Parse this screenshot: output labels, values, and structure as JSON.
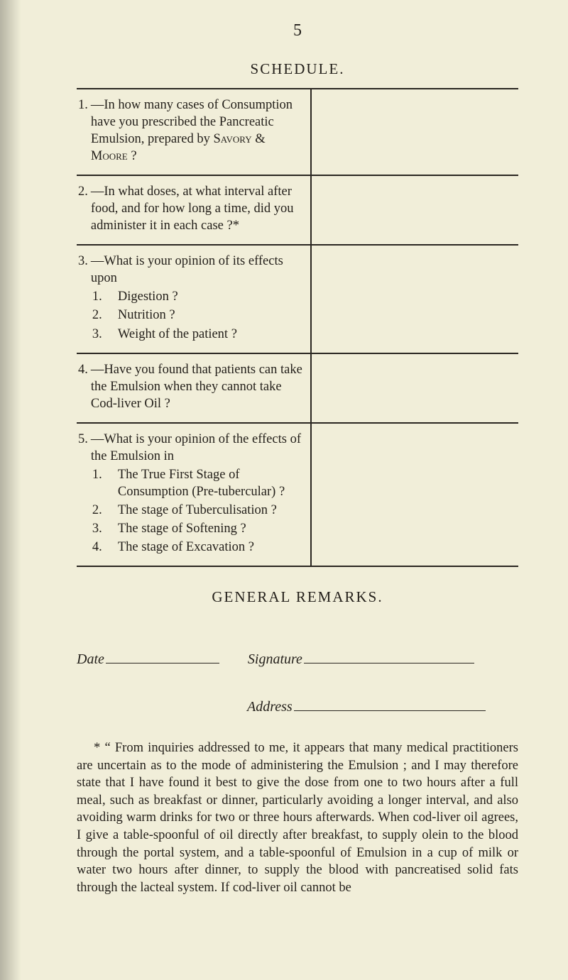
{
  "pageNumber": "5",
  "scheduleTitle": "SCHEDULE.",
  "questions": {
    "q1": {
      "num": "1.",
      "lead": "—In how many cases of Consump­tion have you prescribed the Pancreatic Emulsion, pre­pared by ",
      "smallcaps": "Savory & Moore",
      "tail": " ?"
    },
    "q2": {
      "num": "2.",
      "text": "—In what doses, at what interval after food, and for how long a time, did you administer it in each case ?*"
    },
    "q3": {
      "num": "3.",
      "text": "—What is your opinion of its effects upon",
      "items": [
        {
          "n": "1.",
          "t": "Digestion ?"
        },
        {
          "n": "2.",
          "t": "Nutrition ?"
        },
        {
          "n": "3.",
          "t": "Weight of the patient ?"
        }
      ]
    },
    "q4": {
      "num": "4.",
      "text": "—Have you found that patients can take the Emulsion when they cannot take Cod-liver Oil ?"
    },
    "q5": {
      "num": "5.",
      "text": "—What is your opinion of the effects of the Emulsion in",
      "items": [
        {
          "n": "1.",
          "t": "The True First Stage of Consumption (Pre-tu­bercular) ?"
        },
        {
          "n": "2.",
          "t": "The stage of Tuberculi­sation ?"
        },
        {
          "n": "3.",
          "t": "The stage of Softening ?"
        },
        {
          "n": "4.",
          "t": "The stage of Excavation ?"
        }
      ]
    }
  },
  "generalRemarksTitle": "GENERAL REMARKS.",
  "labels": {
    "date": "Date",
    "signature": "Signature",
    "address": "Address"
  },
  "footnote": "* “ From inquiries addressed to me, it appears that many medical practitioners are uncertain as to the mode of administering the Emulsion ; and I may therefore state that I have found it best to give the dose from one to two hours after a full meal, such as breakfast or dinner, particularly avoiding a longer interval, and also avoiding warm drinks for two or three hours afterwards. When cod-liver oil agrees, I give a table-spoonful of oil directly after breakfast, to supply olein to the blood through the portal system, and a table-spoonful of Emulsion in a cup of milk or water two hours after dinner, to supply the blood with pancreatised solid fats through the lacteal system. If cod-liver oil cannot be",
  "colors": {
    "paper": "#f1eed9",
    "ink": "#231f1a",
    "rule": "#2a2621"
  }
}
